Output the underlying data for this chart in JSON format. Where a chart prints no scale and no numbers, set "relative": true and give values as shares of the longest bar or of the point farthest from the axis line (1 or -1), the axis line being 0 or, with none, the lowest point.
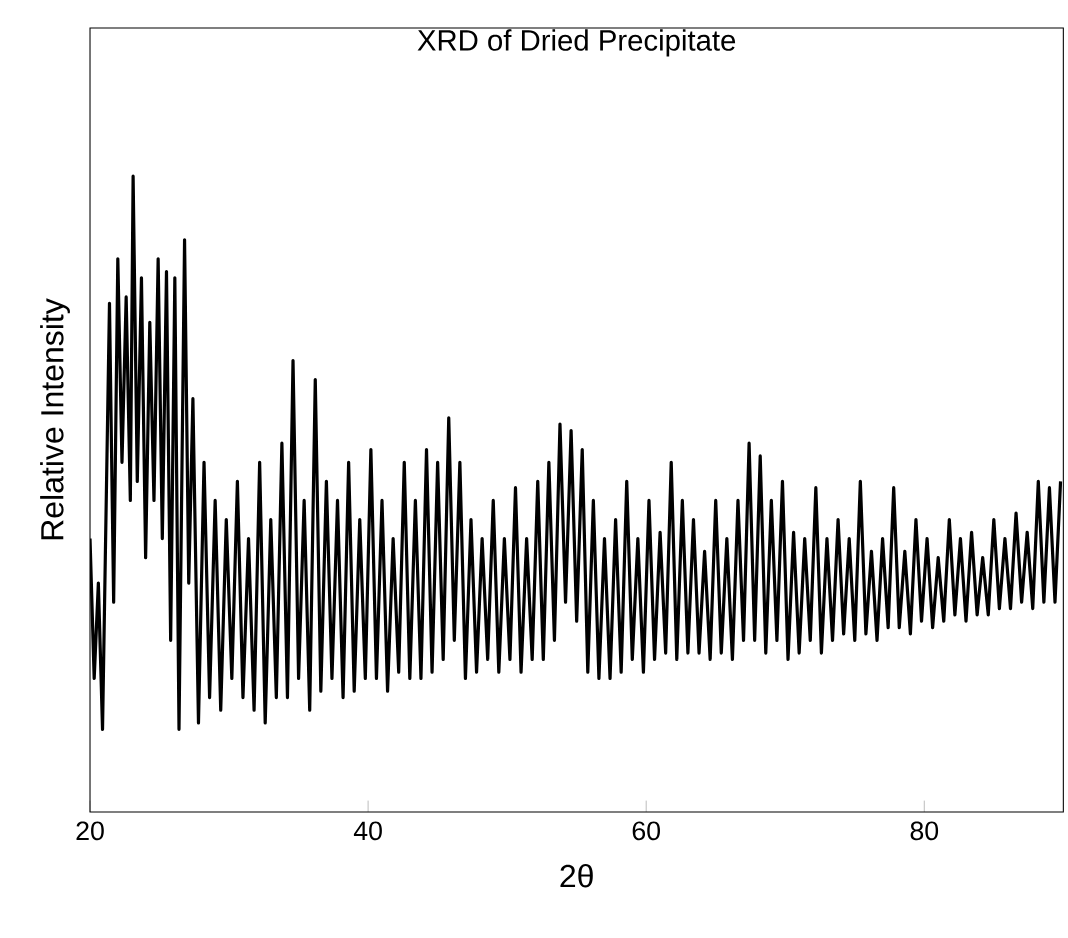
{
  "chart_data": {
    "type": "line",
    "title": "XRD of Dried Precipitate",
    "xlabel": "2θ",
    "ylabel": "Relative Intensity",
    "relative": true,
    "color": "#000000",
    "xlim": [
      20,
      90
    ],
    "xticks": [
      20,
      40,
      60,
      80
    ],
    "tick_labels": "x",
    "x": [
      20,
      20.3,
      20.6,
      20.9,
      21.1,
      21.4,
      21.7,
      22.0,
      22.3,
      22.6,
      22.9,
      23.1,
      23.4,
      23.7,
      24.0,
      24.3,
      24.6,
      24.9,
      25.2,
      25.5,
      25.8,
      26.1,
      26.4,
      26.8,
      27.1,
      27.4,
      27.8,
      28.2,
      28.6,
      29.0,
      29.4,
      29.8,
      30.2,
      30.6,
      31.0,
      31.4,
      31.8,
      32.2,
      32.6,
      33.0,
      33.4,
      33.8,
      34.2,
      34.6,
      35.0,
      35.4,
      35.8,
      36.2,
      36.6,
      37.0,
      37.4,
      37.8,
      38.2,
      38.6,
      39.0,
      39.4,
      39.8,
      40.2,
      40.6,
      41.0,
      41.4,
      41.8,
      42.2,
      42.6,
      43.0,
      43.4,
      43.8,
      44.2,
      44.6,
      45.0,
      45.4,
      45.8,
      46.2,
      46.6,
      47.0,
      47.4,
      47.8,
      48.2,
      48.6,
      49.0,
      49.4,
      49.8,
      50.2,
      50.6,
      51.0,
      51.4,
      51.8,
      52.2,
      52.6,
      53.0,
      53.4,
      53.8,
      54.2,
      54.6,
      55.0,
      55.4,
      55.8,
      56.2,
      56.6,
      57.0,
      57.4,
      57.8,
      58.2,
      58.6,
      59.0,
      59.4,
      59.8,
      60.2,
      60.6,
      61.0,
      61.4,
      61.8,
      62.2,
      62.6,
      63.0,
      63.4,
      63.8,
      64.2,
      64.6,
      65.0,
      65.4,
      65.8,
      66.2,
      66.6,
      67.0,
      67.4,
      67.8,
      68.2,
      68.6,
      69.0,
      69.4,
      69.8,
      70.2,
      70.6,
      71.0,
      71.4,
      71.8,
      72.2,
      72.6,
      73.0,
      73.4,
      73.8,
      74.2,
      74.6,
      75.0,
      75.4,
      75.8,
      76.2,
      76.6,
      77.0,
      77.4,
      77.8,
      78.2,
      78.6,
      79.0,
      79.4,
      79.8,
      80.2,
      80.6,
      81.0,
      81.4,
      81.8,
      82.2,
      82.6,
      83.0,
      83.4,
      83.8,
      84.2,
      84.6,
      85.0,
      85.4,
      85.8,
      86.2,
      86.6,
      87.0,
      87.4,
      87.8,
      88.2,
      88.6,
      89.0,
      89.4,
      89.8
    ],
    "values": [
      0.43,
      0.21,
      0.36,
      0.13,
      0.4,
      0.8,
      0.33,
      0.87,
      0.55,
      0.81,
      0.49,
      1.0,
      0.52,
      0.84,
      0.4,
      0.77,
      0.49,
      0.87,
      0.43,
      0.85,
      0.27,
      0.84,
      0.13,
      0.9,
      0.36,
      0.65,
      0.14,
      0.55,
      0.18,
      0.49,
      0.16,
      0.46,
      0.21,
      0.52,
      0.18,
      0.43,
      0.16,
      0.55,
      0.14,
      0.46,
      0.18,
      0.58,
      0.18,
      0.71,
      0.21,
      0.49,
      0.16,
      0.68,
      0.19,
      0.52,
      0.21,
      0.49,
      0.18,
      0.55,
      0.19,
      0.46,
      0.21,
      0.57,
      0.21,
      0.49,
      0.19,
      0.43,
      0.22,
      0.55,
      0.21,
      0.49,
      0.21,
      0.57,
      0.22,
      0.55,
      0.24,
      0.62,
      0.27,
      0.55,
      0.21,
      0.46,
      0.22,
      0.43,
      0.24,
      0.49,
      0.22,
      0.43,
      0.24,
      0.51,
      0.22,
      0.43,
      0.24,
      0.52,
      0.24,
      0.55,
      0.27,
      0.61,
      0.33,
      0.6,
      0.3,
      0.57,
      0.22,
      0.49,
      0.21,
      0.43,
      0.21,
      0.46,
      0.22,
      0.52,
      0.24,
      0.43,
      0.22,
      0.49,
      0.24,
      0.44,
      0.25,
      0.55,
      0.24,
      0.49,
      0.25,
      0.46,
      0.25,
      0.41,
      0.24,
      0.49,
      0.25,
      0.43,
      0.24,
      0.49,
      0.27,
      0.58,
      0.27,
      0.56,
      0.25,
      0.49,
      0.27,
      0.52,
      0.24,
      0.44,
      0.25,
      0.43,
      0.27,
      0.51,
      0.25,
      0.43,
      0.27,
      0.46,
      0.28,
      0.43,
      0.27,
      0.52,
      0.28,
      0.41,
      0.27,
      0.43,
      0.29,
      0.51,
      0.29,
      0.41,
      0.28,
      0.46,
      0.3,
      0.43,
      0.29,
      0.4,
      0.3,
      0.46,
      0.31,
      0.43,
      0.3,
      0.44,
      0.31,
      0.4,
      0.31,
      0.46,
      0.32,
      0.43,
      0.32,
      0.47,
      0.33,
      0.44,
      0.32,
      0.52,
      0.33,
      0.51,
      0.33,
      0.52
    ]
  }
}
